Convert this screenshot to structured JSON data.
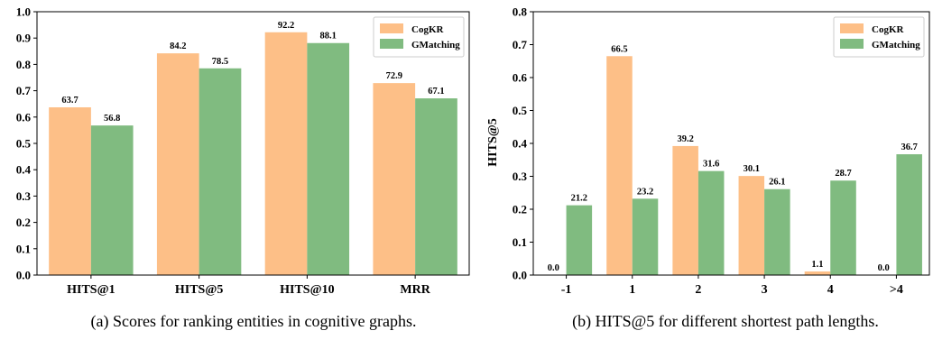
{
  "chart_data": [
    {
      "type": "bar",
      "categories": [
        "HITS@1",
        "HITS@5",
        "HITS@10",
        "MRR"
      ],
      "series": [
        {
          "name": "CogKR",
          "values": [
            0.637,
            0.842,
            0.922,
            0.729
          ],
          "labels": [
            "63.7",
            "84.2",
            "92.2",
            "72.9"
          ],
          "color": "#fdbf87"
        },
        {
          "name": "GMatching",
          "values": [
            0.568,
            0.785,
            0.881,
            0.671
          ],
          "labels": [
            "56.8",
            "78.5",
            "88.1",
            "67.1"
          ],
          "color": "#80bb80"
        }
      ],
      "ylim": [
        0,
        1.0
      ],
      "yticks": [
        "0.0",
        "0.1",
        "0.2",
        "0.3",
        "0.4",
        "0.5",
        "0.6",
        "0.7",
        "0.8",
        "0.9",
        "1.0"
      ],
      "ylabel": "",
      "legend_position": "top-right",
      "caption": "(a) Scores for ranking entities in cognitive graphs."
    },
    {
      "type": "bar",
      "categories": [
        "-1",
        "1",
        "2",
        "3",
        "4",
        ">4"
      ],
      "series": [
        {
          "name": "CogKR",
          "values": [
            0.0,
            0.665,
            0.392,
            0.301,
            0.011,
            0.0
          ],
          "labels": [
            "0.0",
            "66.5",
            "39.2",
            "30.1",
            "1.1",
            "0.0"
          ],
          "color": "#fdbf87"
        },
        {
          "name": "GMatching",
          "values": [
            0.212,
            0.232,
            0.316,
            0.261,
            0.287,
            0.367
          ],
          "labels": [
            "21.2",
            "23.2",
            "31.6",
            "26.1",
            "28.7",
            "36.7"
          ],
          "color": "#80bb80"
        }
      ],
      "ylim": [
        0,
        0.8
      ],
      "yticks": [
        "0.0",
        "0.1",
        "0.2",
        "0.3",
        "0.4",
        "0.5",
        "0.6",
        "0.7",
        "0.8"
      ],
      "ylabel": "HITS@5",
      "legend_position": "top-right",
      "caption": "(b) HITS@5 for different shortest path lengths."
    }
  ]
}
